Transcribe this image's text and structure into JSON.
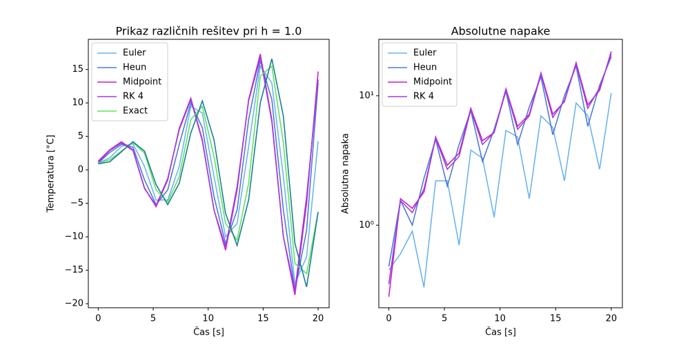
{
  "chart_data": [
    {
      "type": "line",
      "title": "Prikaz različnih rešitev pri h = 1.0",
      "xlabel": "Čas [s]",
      "ylabel": "Temperatura [°C]",
      "x": [
        0,
        1.05,
        2.11,
        3.16,
        4.21,
        5.26,
        6.32,
        7.37,
        8.42,
        9.47,
        10.53,
        11.58,
        12.63,
        13.68,
        14.74,
        15.79,
        16.84,
        17.89,
        18.95,
        20
      ],
      "xlim": [
        -0.9,
        21
      ],
      "ylim": [
        -20.6,
        19.5
      ],
      "xticks": [
        0,
        5,
        10,
        15,
        20
      ],
      "yticks": [
        {
          "value": -20,
          "label": "−20"
        },
        {
          "value": -15,
          "label": "−15"
        },
        {
          "value": -10,
          "label": "−10"
        },
        {
          "value": -5,
          "label": "−5"
        },
        0,
        5,
        10,
        15
      ],
      "yscale": "linear",
      "legend": "upper left",
      "series": [
        {
          "name": "Euler",
          "color": "#6cb4ee",
          "values": [
            1.0,
            1.8,
            3.5,
            3.9,
            0.5,
            -4.5,
            -4.5,
            0.5,
            9.5,
            8.5,
            -1,
            -10,
            -8,
            3.5,
            15.5,
            13,
            -1,
            -17,
            -13,
            4.3
          ]
        },
        {
          "name": "Heun",
          "color": "#4f79d9",
          "values": [
            1.0,
            2.6,
            3.8,
            3.4,
            -1.5,
            -5.2,
            -3,
            3.8,
            10.0,
            6.3,
            -4,
            -11,
            -6,
            7.5,
            16.3,
            10.5,
            -6,
            -18,
            -9,
            13
          ]
        },
        {
          "name": "Midpoint",
          "color": "#c322c9",
          "values": [
            1.3,
            3.0,
            4.2,
            3.0,
            -2.7,
            -5.5,
            -1.5,
            6.2,
            10.7,
            4.5,
            -6,
            -12,
            -3,
            10.5,
            17.3,
            7.5,
            -10,
            -18.7,
            -5,
            14.7
          ]
        },
        {
          "name": "RK 4",
          "color": "#9d3ee0",
          "values": [
            1.1,
            2.9,
            4.0,
            2.9,
            -2.8,
            -5.3,
            -1.3,
            6.0,
            10.5,
            4.3,
            -6,
            -11.5,
            -2.5,
            10.3,
            16.8,
            7.2,
            -10,
            -18,
            -4,
            13.5
          ]
        },
        {
          "name": "Exact",
          "color": "#5de35d",
          "values": [
            1.0,
            1.5,
            2.8,
            4.1,
            2.5,
            -3,
            -4.8,
            -1,
            7.5,
            9.5,
            2,
            -8,
            -10.5,
            -2,
            14,
            15.5,
            4,
            -14,
            -15.5,
            -6.3
          ]
        },
        {
          "color": "#1a7e96",
          "values": [
            0.9,
            1.2,
            2.7,
            4.2,
            2.8,
            -2.2,
            -5.2,
            -2,
            5.5,
            10.3,
            4.5,
            -6.5,
            -11.3,
            -4.5,
            10,
            16.6,
            8,
            -11,
            -17.5,
            -6.3
          ]
        }
      ]
    },
    {
      "type": "line",
      "title": "Absolutne napake",
      "xlabel": "Čas [s]",
      "ylabel": "Absolutna napaka",
      "x": [
        0,
        1.05,
        2.11,
        3.16,
        4.21,
        5.26,
        6.32,
        7.37,
        8.42,
        9.47,
        10.53,
        11.58,
        12.63,
        13.68,
        14.74,
        15.79,
        16.84,
        17.89,
        18.95,
        20
      ],
      "xlim": [
        -0.9,
        21
      ],
      "ylim": [
        0.23,
        27.3
      ],
      "xticks": [
        0,
        5,
        10,
        15,
        20
      ],
      "yticks": [
        {
          "value": 1,
          "label": "10⁰"
        },
        {
          "value": 10,
          "label": "10¹"
        }
      ],
      "yscale": "log",
      "legend": "upper left",
      "series": [
        {
          "name": "Euler",
          "color": "#6cb4ee",
          "values": [
            0.45,
            0.6,
            0.9,
            0.33,
            2.2,
            2.2,
            0.7,
            3.8,
            3.3,
            1.15,
            5.4,
            4.8,
            1.6,
            7,
            5.7,
            2.2,
            8.8,
            7,
            2.7,
            10.5
          ]
        },
        {
          "name": "Heun",
          "color": "#4f79d9",
          "values": [
            0.48,
            1.55,
            1.0,
            2.3,
            4.6,
            2.0,
            4.2,
            7.7,
            3.1,
            5.5,
            10.8,
            4.2,
            8.2,
            14,
            5,
            10,
            17,
            5.8,
            12,
            20
          ]
        },
        {
          "name": "Midpoint",
          "color": "#c322c9",
          "values": [
            0.28,
            1.6,
            1.35,
            1.8,
            4.8,
            2.9,
            3.6,
            8.0,
            4.5,
            5.2,
            11.3,
            5.8,
            7.2,
            15,
            7.2,
            9,
            18,
            8.5,
            11,
            22
          ]
        },
        {
          "name": "RK 4",
          "color": "#9d3ee0",
          "values": [
            0.35,
            1.55,
            1.25,
            1.9,
            4.7,
            2.7,
            3.4,
            7.8,
            4.2,
            5.2,
            11.0,
            5.5,
            7,
            14.7,
            6.8,
            9.2,
            17.5,
            8,
            11.5,
            21
          ]
        }
      ]
    }
  ]
}
